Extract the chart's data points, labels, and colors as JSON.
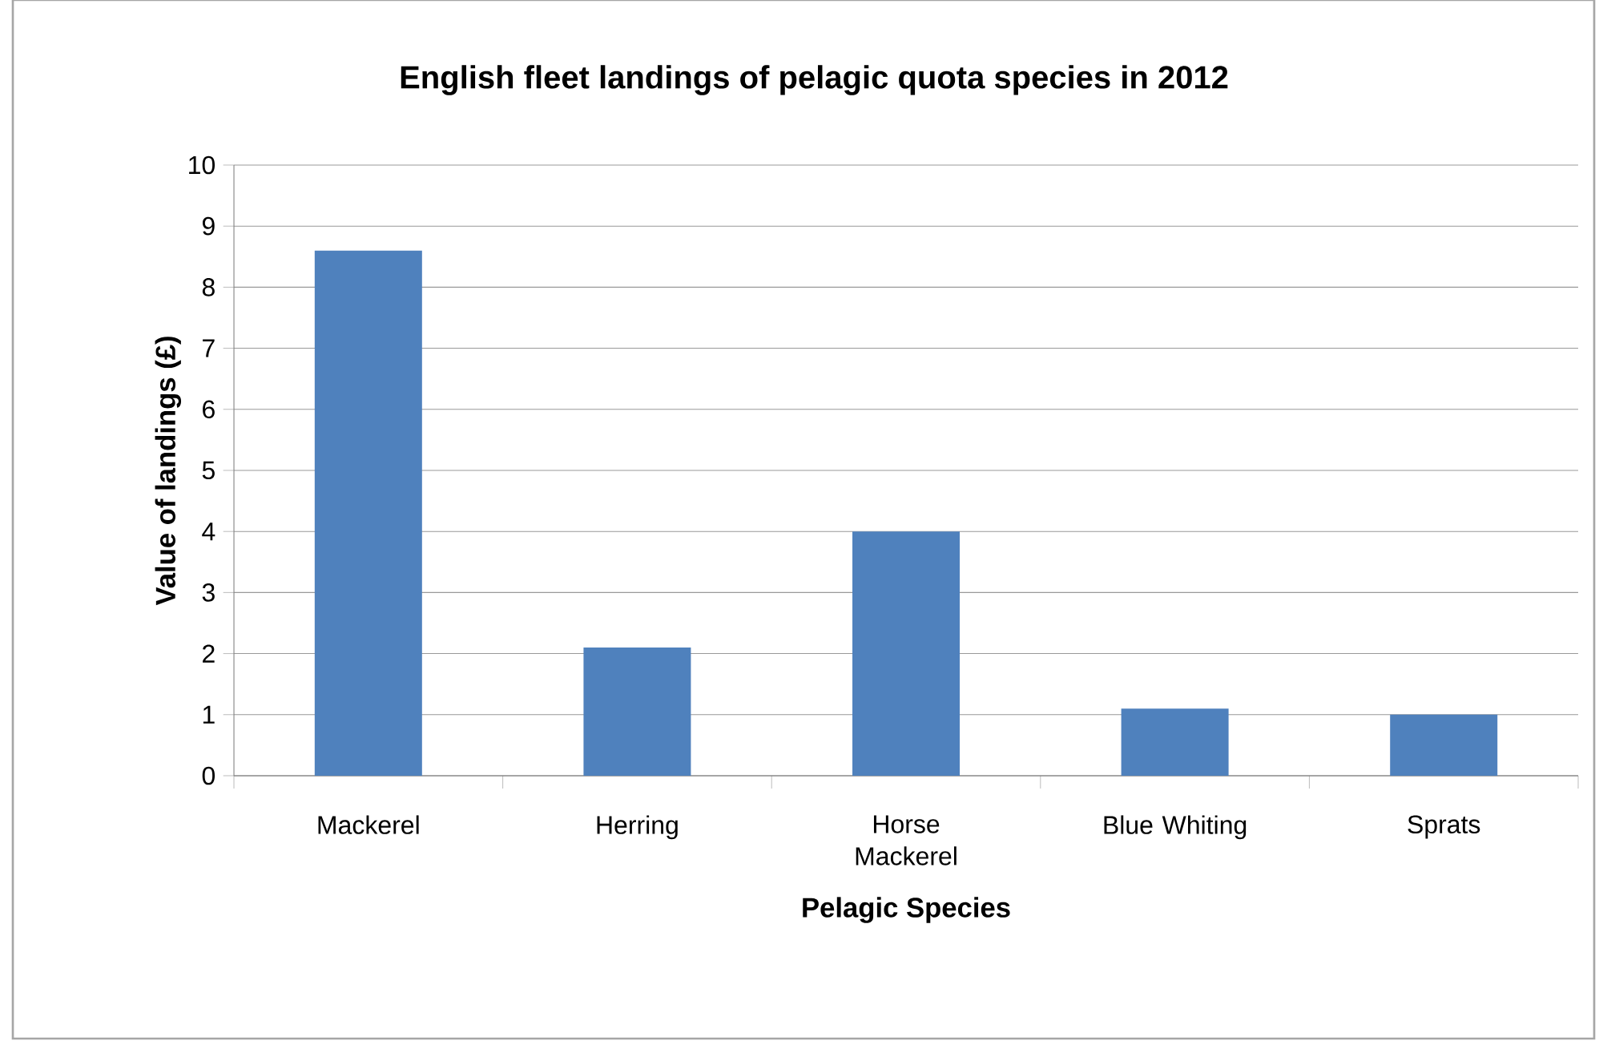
{
  "chart_data": {
    "type": "bar",
    "title": "English fleet landings of pelagic quota species in 2012",
    "xlabel": "Pelagic Species",
    "ylabel": "Value of landings (£)",
    "categories": [
      "Mackerel",
      "Herring",
      "Horse Mackerel",
      "Blue Whiting",
      "Sprats"
    ],
    "values": [
      8.6,
      2.1,
      4.0,
      1.1,
      1.0
    ],
    "color": "#4f81bd",
    "ylim": [
      0,
      10
    ],
    "yticks": [
      0,
      1,
      2,
      3,
      4,
      5,
      6,
      7,
      8,
      9,
      10
    ],
    "grid": "y"
  }
}
